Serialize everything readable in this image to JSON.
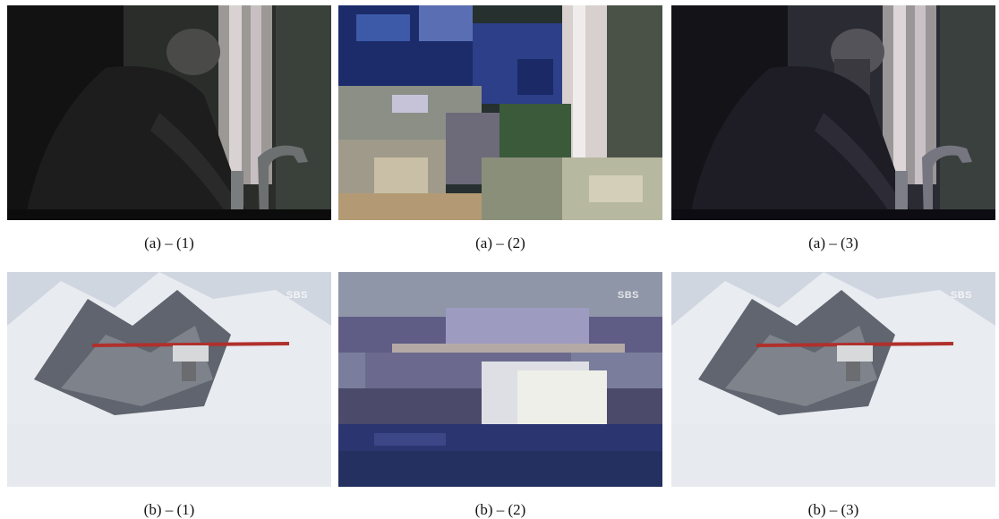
{
  "figure": {
    "panels": [
      {
        "id": "a1",
        "caption": "(a) – (1)",
        "scene": "dark-kitchen-man",
        "state": "original"
      },
      {
        "id": "a2",
        "caption": "(a) – (2)",
        "scene": "dark-kitchen-man",
        "state": "corrupted"
      },
      {
        "id": "a3",
        "caption": "(a) – (3)",
        "scene": "dark-kitchen-man",
        "state": "concealed"
      },
      {
        "id": "b1",
        "caption": "(b) – (1)",
        "scene": "snow-mountain-plane",
        "state": "original",
        "logo": "SBS"
      },
      {
        "id": "b2",
        "caption": "(b) – (2)",
        "scene": "snow-mountain-plane",
        "state": "corrupted",
        "logo": "SBS"
      },
      {
        "id": "b3",
        "caption": "(b) – (3)",
        "scene": "snow-mountain-plane",
        "state": "concealed",
        "logo": "SBS"
      }
    ],
    "colors": {
      "dark_bg": "#141414",
      "snow": "#dfe3ea",
      "rock": "#5a5f68",
      "plane_stripe": "#b0302c",
      "glitch_blue": "#2c3f88"
    }
  }
}
